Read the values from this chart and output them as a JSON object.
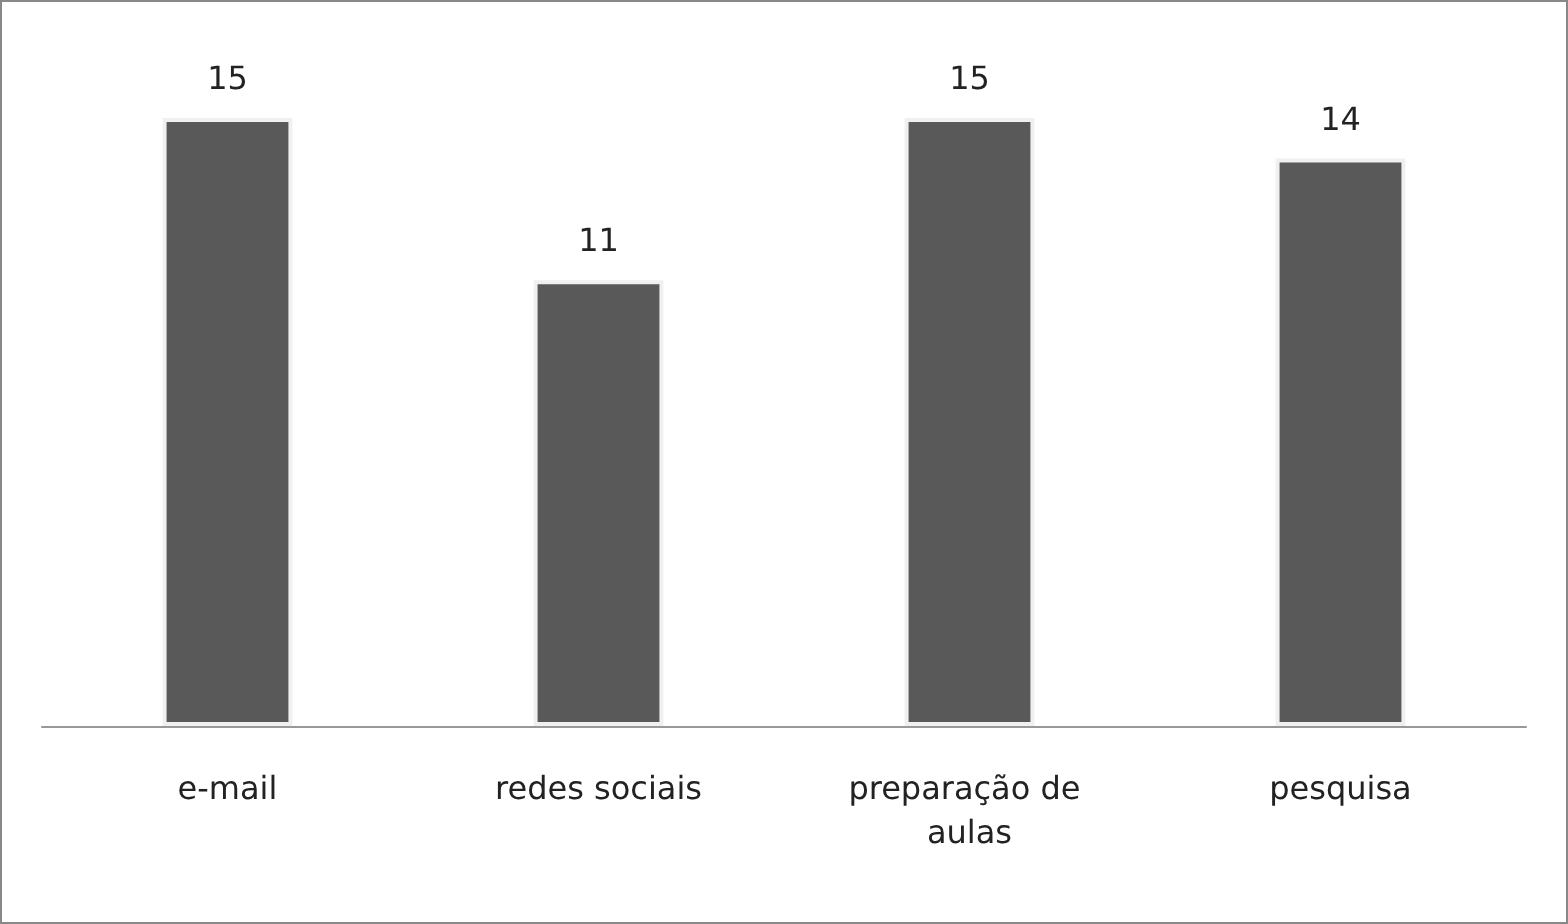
{
  "chart_data": {
    "type": "bar",
    "categories": [
      "e-mail",
      "redes sociais",
      "preparação de aulas",
      "pesquisa"
    ],
    "values": [
      15,
      11,
      15,
      14
    ],
    "color": "#595959",
    "data_labels": true
  }
}
